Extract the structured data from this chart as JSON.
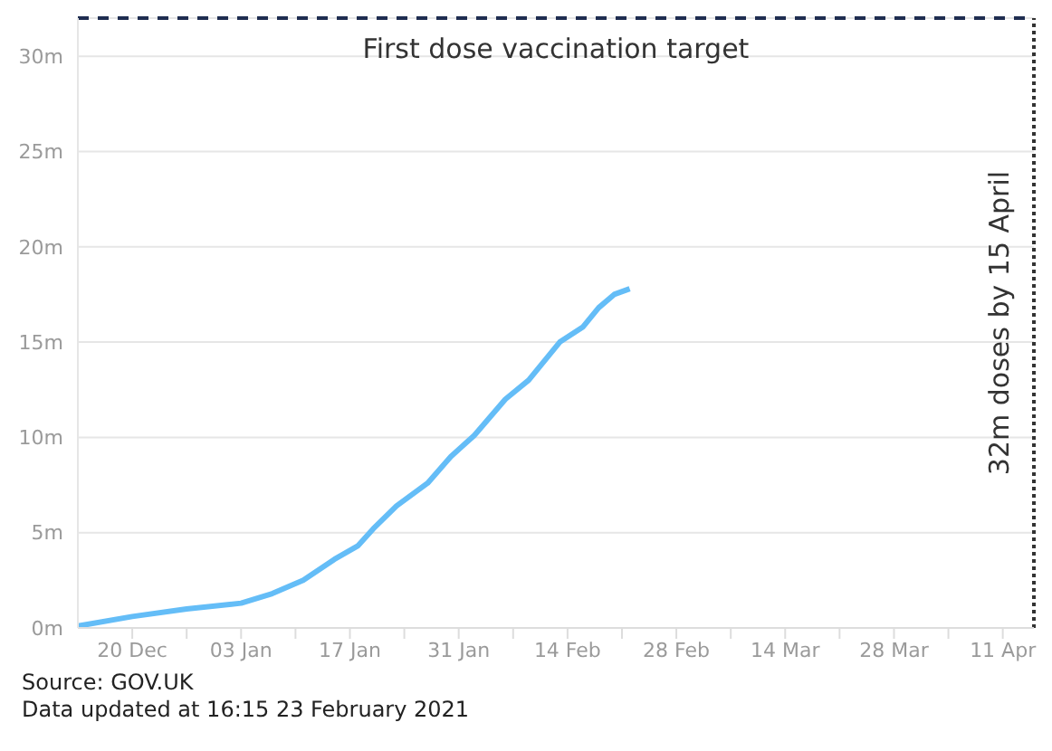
{
  "chart_data": {
    "type": "line",
    "x": [
      "2020-12-13",
      "2020-12-20",
      "2020-12-27",
      "2021-01-03",
      "2021-01-07",
      "2021-01-11",
      "2021-01-15",
      "2021-01-18",
      "2021-01-20",
      "2021-01-23",
      "2021-01-27",
      "2021-01-30",
      "2021-02-02",
      "2021-02-06",
      "2021-02-09",
      "2021-02-13",
      "2021-02-16",
      "2021-02-18",
      "2021-02-20",
      "2021-02-22"
    ],
    "series": [
      {
        "color": "#64bdf7",
        "values": [
          0.1,
          0.6,
          1.0,
          1.3,
          1.8,
          2.5,
          3.6,
          4.3,
          5.2,
          6.4,
          7.6,
          9.0,
          10.1,
          12.0,
          13.0,
          15.0,
          15.8,
          16.8,
          17.5,
          17.8
        ]
      }
    ],
    "xlim": [
      "2020-12-13",
      "2021-04-15"
    ],
    "xticks": [
      {
        "value": "2020-12-20",
        "label": "20 Dec"
      },
      {
        "value": "2020-12-27",
        "label": null
      },
      {
        "value": "2021-01-03",
        "label": "03 Jan"
      },
      {
        "value": "2021-01-10",
        "label": null
      },
      {
        "value": "2021-01-17",
        "label": "17 Jan"
      },
      {
        "value": "2021-01-24",
        "label": null
      },
      {
        "value": "2021-01-31",
        "label": "31 Jan"
      },
      {
        "value": "2021-02-07",
        "label": null
      },
      {
        "value": "2021-02-14",
        "label": "14 Feb"
      },
      {
        "value": "2021-02-21",
        "label": null
      },
      {
        "value": "2021-02-28",
        "label": "28 Feb"
      },
      {
        "value": "2021-03-07",
        "label": null
      },
      {
        "value": "2021-03-14",
        "label": "14 Mar"
      },
      {
        "value": "2021-03-21",
        "label": null
      },
      {
        "value": "2021-03-28",
        "label": "28 Mar"
      },
      {
        "value": "2021-04-04",
        "label": null
      },
      {
        "value": "2021-04-11",
        "label": "11 Apr"
      }
    ],
    "ylim": [
      0,
      32
    ],
    "yticks": [
      {
        "value": 0,
        "label": "0m"
      },
      {
        "value": 5,
        "label": "5m"
      },
      {
        "value": 10,
        "label": "10m"
      },
      {
        "value": 15,
        "label": "15m"
      },
      {
        "value": 20,
        "label": "20m"
      },
      {
        "value": 25,
        "label": "25m"
      },
      {
        "value": 30,
        "label": "30m"
      }
    ],
    "grid": "y",
    "ref_lines": [
      {
        "axis": "y",
        "value": 32,
        "label": "First dose vaccination target",
        "color": "#1f2d50",
        "line_style": "dashed"
      },
      {
        "axis": "x",
        "value": "2021-04-15",
        "label": "32m doses by 15 April",
        "color": "#333333",
        "line_style": "dotted"
      }
    ],
    "annotations": [
      "Source: GOV.UK",
      "Data updated at 16:15 23 February 2021"
    ]
  }
}
